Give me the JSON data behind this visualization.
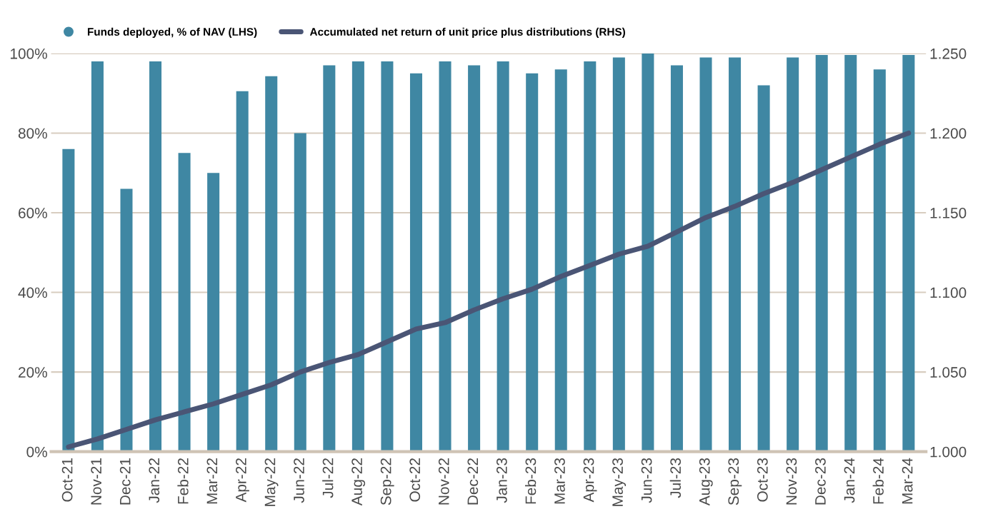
{
  "chart_data": {
    "type": "bar",
    "categories": [
      "Oct-21",
      "Nov-21",
      "Dec-21",
      "Jan-22",
      "Feb-22",
      "Mar-22",
      "Apr-22",
      "May-22",
      "Jun-22",
      "Jul-22",
      "Aug-22",
      "Sep-22",
      "Oct-22",
      "Nov-22",
      "Dec-22",
      "Jan-23",
      "Feb-23",
      "Mar-23",
      "Apr-23",
      "May-23",
      "Jun-23",
      "Jul-23",
      "Aug-23",
      "Sep-23",
      "Oct-23",
      "Nov-23",
      "Dec-23",
      "Jan-24",
      "Feb-24",
      "Mar-24"
    ],
    "series": [
      {
        "name": "Funds deployed, % of NAV (LHS)",
        "color": "#3f87a3",
        "values": [
          76,
          98,
          66,
          98,
          75,
          70,
          90.5,
          94.3,
          80,
          97,
          98,
          98,
          95,
          98,
          97,
          98,
          95,
          96,
          98,
          99,
          100,
          97,
          99,
          99,
          92,
          99,
          99.6,
          99.6,
          96,
          99.6
        ]
      },
      {
        "name": "Accumulated net return of unit price plus distributions (RHS)",
        "type": "line",
        "axis": "y2",
        "color": "#4a5575",
        "line_style": "solid",
        "marker": "none",
        "values": [
          1.003,
          1.008,
          1.014,
          1.02,
          1.025,
          1.03,
          1.036,
          1.042,
          1.05,
          1.056,
          1.061,
          1.069,
          1.077,
          1.081,
          1.089,
          1.096,
          1.102,
          1.11,
          1.117,
          1.124,
          1.129,
          1.138,
          1.147,
          1.154,
          1.162,
          1.169,
          1.177,
          1.185,
          1.193,
          1.2
        ]
      }
    ],
    "ylim": [
      0,
      100
    ],
    "yticks": [
      {
        "value": 0,
        "label": "0%"
      },
      {
        "value": 20,
        "label": "20%"
      },
      {
        "value": 40,
        "label": "40%"
      },
      {
        "value": 60,
        "label": "60%"
      },
      {
        "value": 80,
        "label": "80%"
      },
      {
        "value": 100,
        "label": "100%"
      }
    ],
    "y2lim": [
      1.0,
      1.25
    ],
    "y2ticks": [
      {
        "value": 1.0,
        "label": "1.000"
      },
      {
        "value": 1.05,
        "label": "1.050"
      },
      {
        "value": 1.1,
        "label": "1.100"
      },
      {
        "value": 1.15,
        "label": "1.150"
      },
      {
        "value": 1.2,
        "label": "1.200"
      },
      {
        "value": 1.25,
        "label": "1.250"
      }
    ],
    "grid": "y",
    "legend": "top left"
  }
}
